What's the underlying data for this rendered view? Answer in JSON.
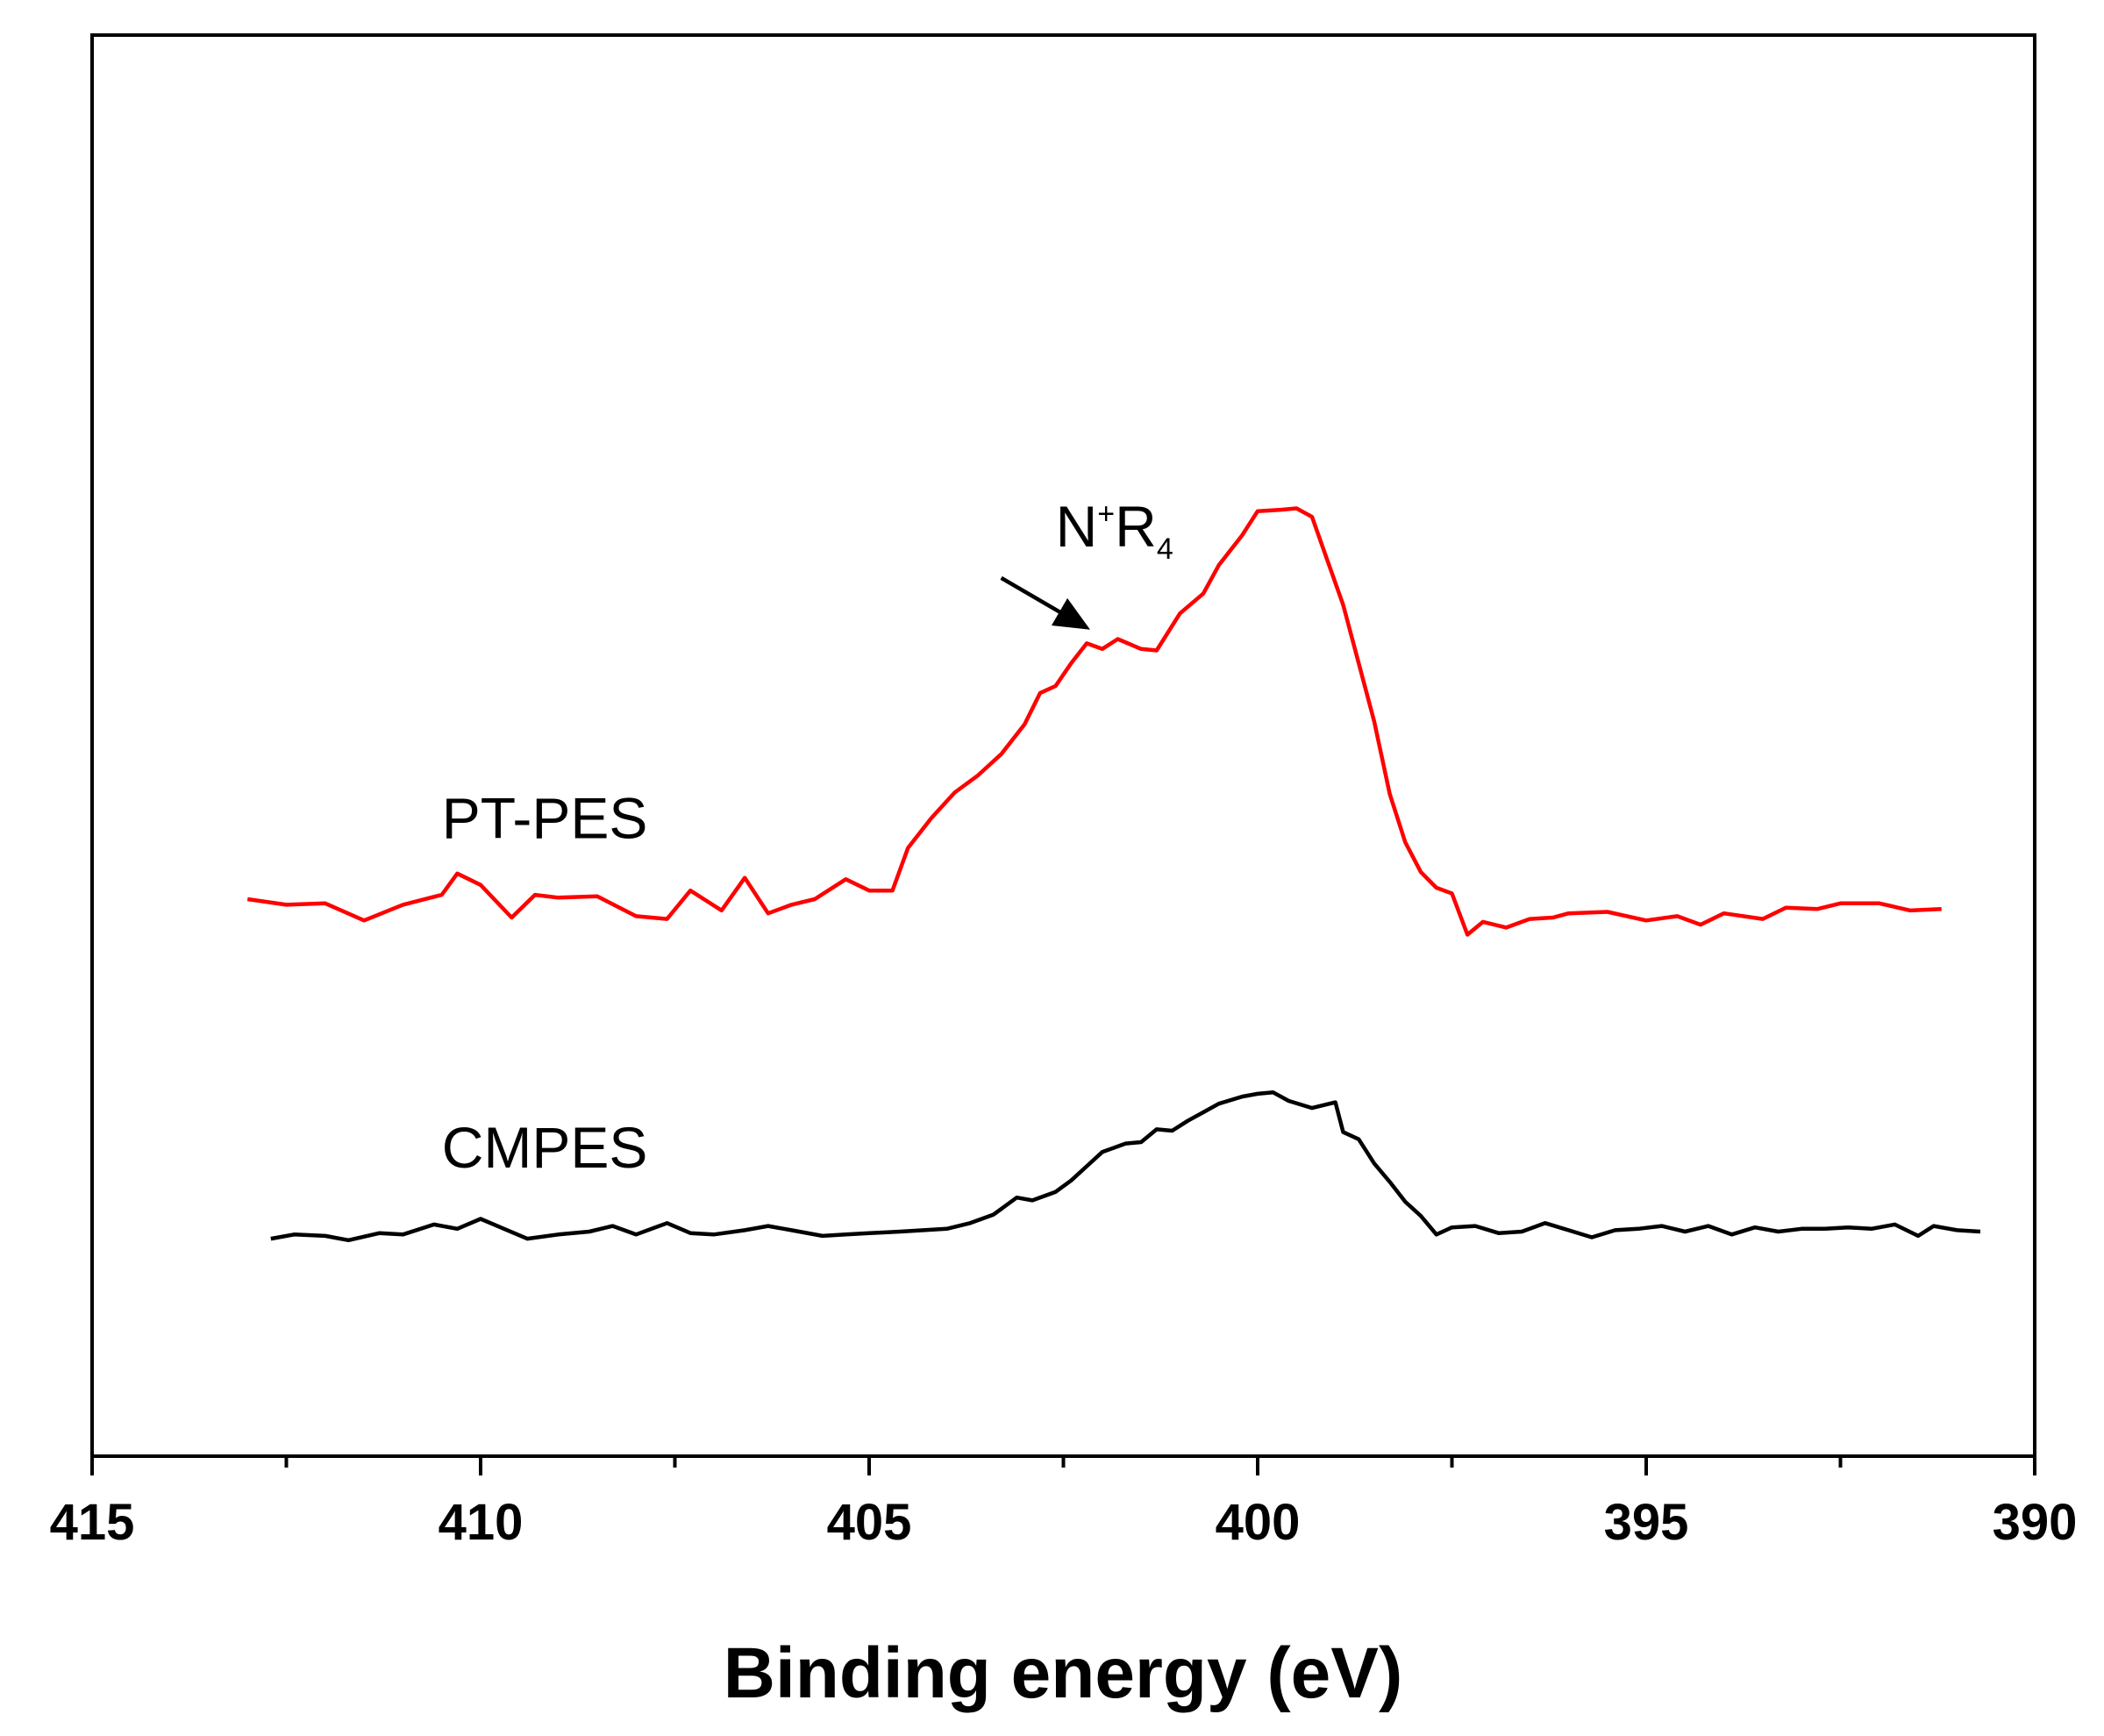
{
  "chart_data": {
    "type": "line",
    "title": "",
    "xlabel": "Binding energy (eV)",
    "ylabel": "",
    "xlim": [
      415,
      390
    ],
    "x_reversed": true,
    "ylim": [
      0,
      100
    ],
    "y_ticks_shown": false,
    "x_ticks": [
      415,
      410,
      405,
      400,
      395,
      390
    ],
    "x_tick_labels": [
      "415",
      "410",
      "405",
      "400",
      "395",
      "390"
    ],
    "grid": false,
    "legend": "none",
    "series": [
      {
        "name": "PT-PES",
        "color": "#ff0000",
        "points": [
          [
            413.0,
            39.2
          ],
          [
            412.5,
            38.8
          ],
          [
            412.0,
            38.9
          ],
          [
            411.5,
            37.7
          ],
          [
            411.0,
            38.8
          ],
          [
            410.5,
            39.5
          ],
          [
            410.3,
            41.0
          ],
          [
            410.0,
            40.2
          ],
          [
            409.6,
            37.9
          ],
          [
            409.3,
            39.5
          ],
          [
            409.0,
            39.3
          ],
          [
            408.5,
            39.4
          ],
          [
            408.0,
            38.0
          ],
          [
            407.6,
            37.8
          ],
          [
            407.3,
            39.8
          ],
          [
            406.9,
            38.4
          ],
          [
            406.6,
            40.7
          ],
          [
            406.3,
            38.2
          ],
          [
            406.0,
            38.8
          ],
          [
            405.7,
            39.2
          ],
          [
            405.3,
            40.6
          ],
          [
            405.0,
            39.8
          ],
          [
            404.7,
            39.8
          ],
          [
            404.5,
            42.8
          ],
          [
            404.2,
            44.9
          ],
          [
            403.9,
            46.7
          ],
          [
            403.6,
            47.9
          ],
          [
            403.3,
            49.4
          ],
          [
            403.0,
            51.5
          ],
          [
            402.8,
            53.7
          ],
          [
            402.6,
            54.2
          ],
          [
            402.4,
            55.8
          ],
          [
            402.2,
            57.2
          ],
          [
            402.0,
            56.8
          ],
          [
            401.8,
            57.5
          ],
          [
            401.5,
            56.8
          ],
          [
            401.3,
            56.7
          ],
          [
            401.0,
            59.3
          ],
          [
            400.7,
            60.7
          ],
          [
            400.5,
            62.7
          ],
          [
            400.2,
            64.8
          ],
          [
            400.0,
            66.5
          ],
          [
            399.7,
            66.6
          ],
          [
            399.5,
            66.7
          ],
          [
            399.3,
            66.1
          ],
          [
            399.1,
            63.0
          ],
          [
            398.9,
            59.9
          ],
          [
            398.7,
            55.8
          ],
          [
            398.5,
            51.7
          ],
          [
            398.3,
            46.6
          ],
          [
            398.1,
            43.2
          ],
          [
            397.9,
            41.1
          ],
          [
            397.7,
            40.0
          ],
          [
            397.5,
            39.6
          ],
          [
            397.3,
            36.7
          ],
          [
            397.1,
            37.6
          ],
          [
            396.8,
            37.2
          ],
          [
            396.5,
            37.8
          ],
          [
            396.2,
            37.9
          ],
          [
            396.0,
            38.2
          ],
          [
            395.5,
            38.3
          ],
          [
            395.0,
            37.7
          ],
          [
            394.6,
            38.0
          ],
          [
            394.3,
            37.4
          ],
          [
            394.0,
            38.2
          ],
          [
            393.5,
            37.8
          ],
          [
            393.2,
            38.6
          ],
          [
            392.8,
            38.5
          ],
          [
            392.5,
            38.9
          ],
          [
            392.0,
            38.9
          ],
          [
            391.6,
            38.4
          ],
          [
            391.2,
            38.5
          ]
        ]
      },
      {
        "name": "CMPES",
        "color": "#000000",
        "points": [
          [
            412.7,
            15.3
          ],
          [
            412.4,
            15.6
          ],
          [
            412.0,
            15.5
          ],
          [
            411.7,
            15.2
          ],
          [
            411.3,
            15.7
          ],
          [
            411.0,
            15.6
          ],
          [
            410.6,
            16.3
          ],
          [
            410.3,
            16.0
          ],
          [
            410.0,
            16.7
          ],
          [
            409.7,
            16.0
          ],
          [
            409.4,
            15.3
          ],
          [
            409.0,
            15.6
          ],
          [
            408.6,
            15.8
          ],
          [
            408.3,
            16.2
          ],
          [
            408.0,
            15.6
          ],
          [
            407.6,
            16.4
          ],
          [
            407.3,
            15.7
          ],
          [
            407.0,
            15.6
          ],
          [
            406.6,
            15.9
          ],
          [
            406.3,
            16.2
          ],
          [
            406.0,
            15.9
          ],
          [
            405.6,
            15.5
          ],
          [
            405.3,
            15.6
          ],
          [
            405.0,
            15.7
          ],
          [
            404.6,
            15.8
          ],
          [
            404.3,
            15.9
          ],
          [
            404.0,
            16.0
          ],
          [
            403.7,
            16.4
          ],
          [
            403.4,
            17.0
          ],
          [
            403.1,
            18.2
          ],
          [
            402.9,
            18.0
          ],
          [
            402.6,
            18.6
          ],
          [
            402.4,
            19.4
          ],
          [
            402.2,
            20.4
          ],
          [
            402.0,
            21.4
          ],
          [
            401.7,
            22.0
          ],
          [
            401.5,
            22.1
          ],
          [
            401.3,
            23.0
          ],
          [
            401.1,
            22.9
          ],
          [
            400.9,
            23.6
          ],
          [
            400.7,
            24.2
          ],
          [
            400.5,
            24.8
          ],
          [
            400.2,
            25.3
          ],
          [
            400.0,
            25.5
          ],
          [
            399.8,
            25.6
          ],
          [
            399.6,
            25.0
          ],
          [
            399.3,
            24.5
          ],
          [
            399.0,
            24.9
          ],
          [
            398.9,
            22.8
          ],
          [
            398.7,
            22.3
          ],
          [
            398.5,
            20.6
          ],
          [
            398.3,
            19.3
          ],
          [
            398.1,
            17.9
          ],
          [
            397.9,
            16.9
          ],
          [
            397.7,
            15.6
          ],
          [
            397.5,
            16.1
          ],
          [
            397.2,
            16.2
          ],
          [
            396.9,
            15.7
          ],
          [
            396.6,
            15.8
          ],
          [
            396.3,
            16.4
          ],
          [
            396.0,
            15.9
          ],
          [
            395.7,
            15.4
          ],
          [
            395.4,
            15.9
          ],
          [
            395.1,
            16.0
          ],
          [
            394.8,
            16.2
          ],
          [
            394.5,
            15.8
          ],
          [
            394.2,
            16.2
          ],
          [
            393.9,
            15.6
          ],
          [
            393.6,
            16.1
          ],
          [
            393.3,
            15.8
          ],
          [
            393.0,
            16.0
          ],
          [
            392.7,
            16.0
          ],
          [
            392.4,
            16.1
          ],
          [
            392.1,
            16.0
          ],
          [
            391.8,
            16.3
          ],
          [
            391.5,
            15.5
          ],
          [
            391.3,
            16.2
          ],
          [
            391.0,
            15.9
          ],
          [
            390.7,
            15.8
          ]
        ]
      }
    ],
    "series_labels": [
      {
        "text": "PT-PES",
        "x": 410.5,
        "y": 43.5
      },
      {
        "text": "CMPES",
        "x": 410.5,
        "y": 20.3
      }
    ],
    "annotations": [
      {
        "base": "N",
        "sup": "+",
        "main": "R",
        "sub": "4",
        "text_x": 402.6,
        "text_y": 64.0,
        "arrow_from": [
          403.3,
          61.8
        ],
        "arrow_to": [
          402.2,
          58.3
        ]
      }
    ]
  }
}
